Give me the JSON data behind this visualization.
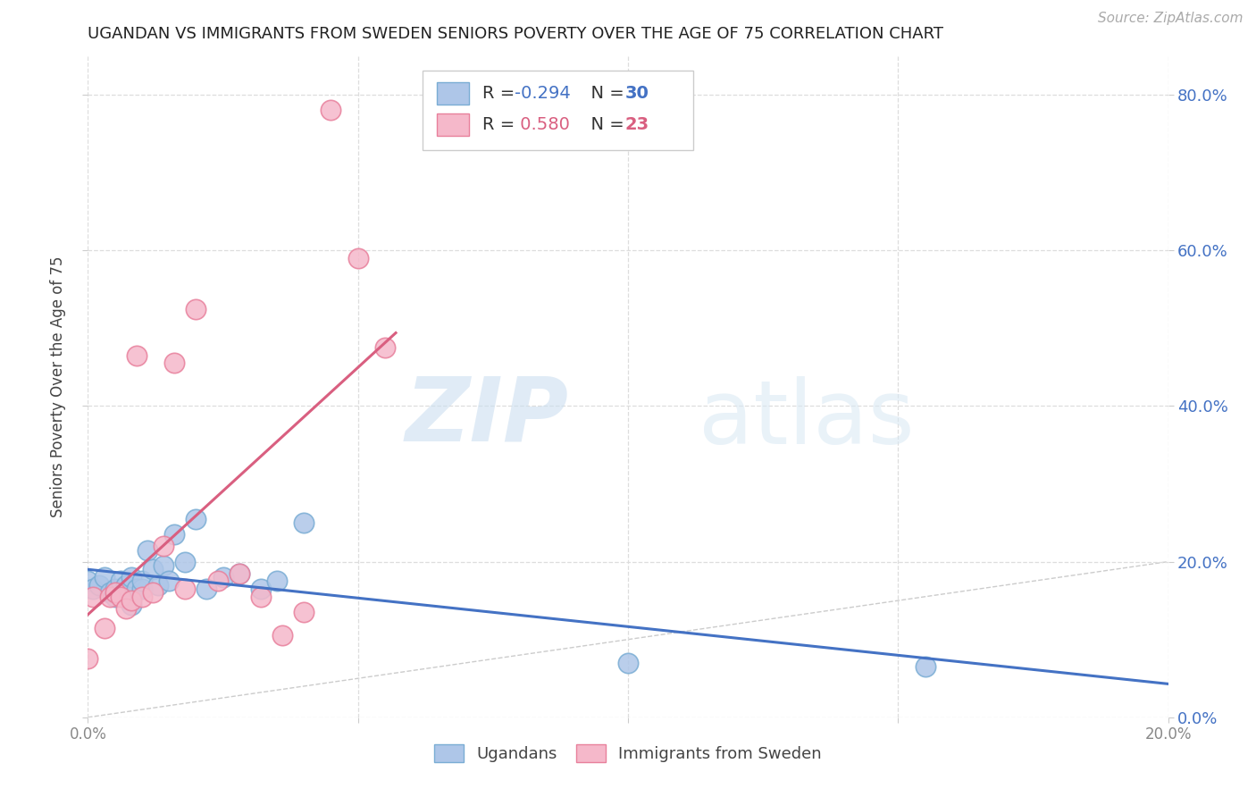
{
  "title": "UGANDAN VS IMMIGRANTS FROM SWEDEN SENIORS POVERTY OVER THE AGE OF 75 CORRELATION CHART",
  "source": "Source: ZipAtlas.com",
  "ylabel": "Seniors Poverty Over the Age of 75",
  "background_color": "#ffffff",
  "watermark_zip": "ZIP",
  "watermark_atlas": "atlas",
  "xlim": [
    0.0,
    0.2
  ],
  "ylim": [
    0.0,
    0.85
  ],
  "yticks": [
    0.0,
    0.2,
    0.4,
    0.6,
    0.8
  ],
  "xticks": [
    0.0,
    0.05,
    0.1,
    0.15,
    0.2
  ],
  "xtick_labels_show": [
    "0.0%",
    "",
    "",
    "",
    "20.0%"
  ],
  "ytick_labels": [
    "0.0%",
    "20.0%",
    "40.0%",
    "60.0%",
    "80.0%"
  ],
  "ugandan_color": "#aec6e8",
  "sweden_color": "#f5b8ca",
  "ugandan_edge": "#7aadd4",
  "sweden_edge": "#e8809c",
  "trendline_ugandan_color": "#4472c4",
  "trendline_sweden_color": "#d95f80",
  "diagonal_color": "#cccccc",
  "legend_R_ugandan": "-0.294",
  "legend_N_ugandan": "30",
  "legend_R_sweden": "0.580",
  "legend_N_sweden": "23",
  "ugandan_x": [
    0.0,
    0.001,
    0.002,
    0.003,
    0.004,
    0.005,
    0.005,
    0.006,
    0.007,
    0.008,
    0.008,
    0.009,
    0.01,
    0.01,
    0.011,
    0.012,
    0.013,
    0.014,
    0.015,
    0.016,
    0.018,
    0.02,
    0.022,
    0.025,
    0.028,
    0.032,
    0.035,
    0.04,
    0.1,
    0.155
  ],
  "ugandan_y": [
    0.175,
    0.165,
    0.17,
    0.18,
    0.16,
    0.165,
    0.155,
    0.175,
    0.17,
    0.145,
    0.18,
    0.165,
    0.165,
    0.175,
    0.215,
    0.19,
    0.17,
    0.195,
    0.175,
    0.235,
    0.2,
    0.255,
    0.165,
    0.18,
    0.185,
    0.165,
    0.175,
    0.25,
    0.07,
    0.065
  ],
  "sweden_x": [
    0.0,
    0.001,
    0.003,
    0.004,
    0.005,
    0.006,
    0.007,
    0.008,
    0.009,
    0.01,
    0.012,
    0.014,
    0.016,
    0.018,
    0.02,
    0.024,
    0.028,
    0.032,
    0.036,
    0.04,
    0.045,
    0.05,
    0.055
  ],
  "sweden_y": [
    0.075,
    0.155,
    0.115,
    0.155,
    0.16,
    0.155,
    0.14,
    0.15,
    0.465,
    0.155,
    0.16,
    0.22,
    0.455,
    0.165,
    0.525,
    0.175,
    0.185,
    0.155,
    0.105,
    0.135,
    0.78,
    0.59,
    0.475
  ],
  "sweden_trendline_x_end": 0.057,
  "ugandan_trendline_x_end": 0.2
}
